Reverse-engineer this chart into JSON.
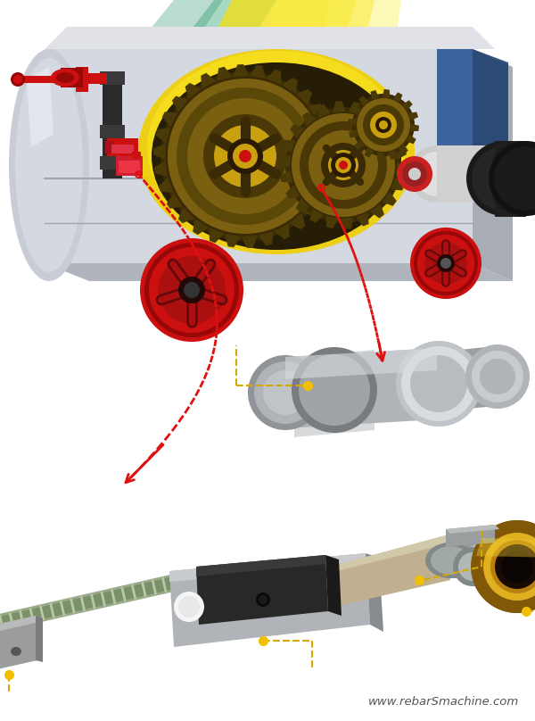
{
  "bg_color": "#ffffff",
  "watermark": "www.rebarSmachine.com",
  "watermark_color": "#555555",
  "watermark_fontsize": 9.5,
  "arrow_color": "#dd1111",
  "dashed_color": "#dd1111",
  "yellow_dot_color": "#f0c000",
  "yellow_dash_color": "#d4a800",
  "machine_body_light": "#d4d8e0",
  "machine_body_mid": "#c0c4cc",
  "machine_body_dark": "#a8acb4",
  "machine_top": "#e0e2e8",
  "machine_left_curve": "#b8bcc4",
  "gear_dark": "#4a3a08",
  "gear_mid": "#7a6010",
  "gear_light": "#c8a010",
  "gear_highlight": "#e0bc20",
  "red_part": "#cc1010",
  "red_dark": "#990808",
  "red_light": "#ee2020",
  "blade_light": "#d8dce0",
  "blade_mid": "#b0b4b8",
  "blade_dark": "#888c90",
  "gold_light": "#e0b020",
  "gold_mid": "#b88010",
  "gold_dark": "#805808",
  "silver_light": "#d4d8dc",
  "silver_mid": "#a8acb0",
  "motor_dark": "#1a1a1a",
  "motor_gray": "#888888",
  "black_c": "#0a0a0a",
  "blue_panel": "#2a5898",
  "rebar_green": "#6a8860",
  "rebar_dark": "#4a6840",
  "knife_dark": "#282828",
  "knife_mid": "#3a3a3a",
  "connector_tan": "#c0b090",
  "connector_dark": "#9a8a68"
}
